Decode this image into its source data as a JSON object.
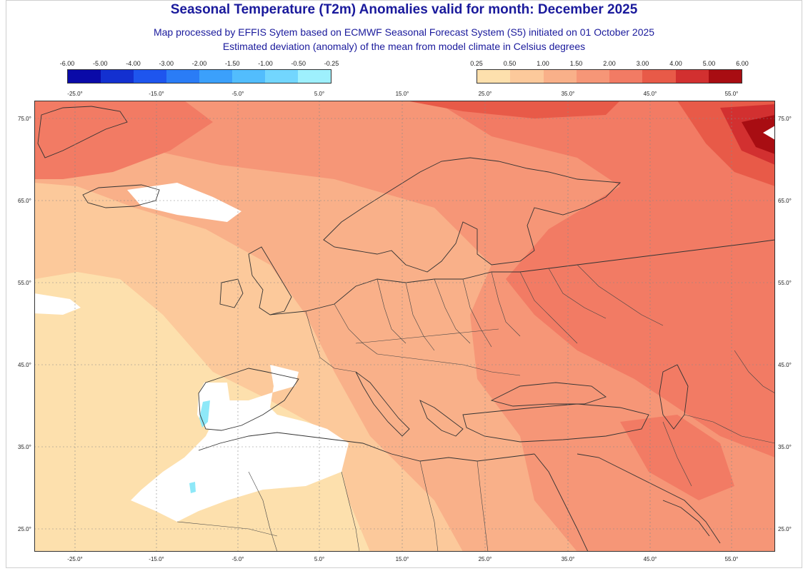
{
  "header": {
    "title": "Seasonal Temperature (T2m) Anomalies valid for month: December 2025",
    "subtitle1": "Map processed by EFFIS Sytem based on ECMWF Seasonal Forecast System (S5) initiated on 01 October 2025",
    "subtitle2": "Estimated deviation (anomaly) of the mean from model climate in Celsius degrees"
  },
  "legend": {
    "negative": {
      "labels": [
        "-6.00",
        "-5.00",
        "-4.00",
        "-3.00",
        "-2.00",
        "-1.50",
        "-1.00",
        "-0.50",
        "-0.25"
      ],
      "colors": [
        "#0a0aa8",
        "#1330d0",
        "#1e55ee",
        "#2a7cf6",
        "#3ba0fb",
        "#52bdfd",
        "#72d6fe",
        "#9ef0fd"
      ]
    },
    "positive": {
      "labels": [
        "0.25",
        "0.50",
        "1.00",
        "1.50",
        "2.00",
        "3.00",
        "4.00",
        "5.00",
        "6.00"
      ],
      "colors": [
        "#fde0ad",
        "#fcc99b",
        "#f9b089",
        "#f69677",
        "#f27b64",
        "#e85a48",
        "#d23030",
        "#a80d12"
      ]
    }
  },
  "axes": {
    "top_longitudes": [
      "-25.0°",
      "-15.0°",
      "-5.0°",
      "5.0°",
      "15.0°",
      "25.0°",
      "35.0°",
      "45.0°",
      "55.0°"
    ],
    "bottom_longitudes": [
      "-25.0°",
      "-15.0°",
      "-5.0°",
      "5.0°",
      "15.0°",
      "25.0°",
      "35.0°",
      "45.0°",
      "55.0°"
    ],
    "left_latitudes": [
      "75.0°",
      "65.0°",
      "55.0°",
      "45.0°",
      "35.0°",
      "25.0°"
    ],
    "right_latitudes": [
      "75.0°",
      "65.0°",
      "55.0°",
      "45.0°",
      "35.0°",
      "25.0°"
    ]
  },
  "map": {
    "icons": [
      "land-map",
      "anomaly-field"
    ],
    "colors": {
      "land": "#fde0ad",
      "c050": "#fcc99b",
      "c100": "#f9b089",
      "c150": "#f69677",
      "c200": "#f27b64",
      "c300": "#e85a48",
      "c400": "#d23030",
      "c600": "#a80d12",
      "cold": "#8ee8f8",
      "ocean": "#ffffff"
    }
  }
}
